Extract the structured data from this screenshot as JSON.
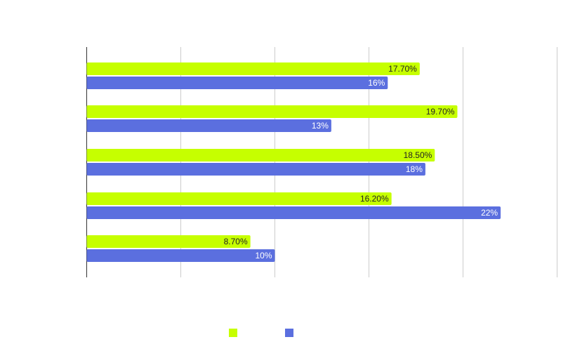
{
  "chart_data": {
    "type": "bar",
    "orientation": "horizontal",
    "title": "",
    "xlabel": "",
    "ylabel": "",
    "xlim": [
      0,
      25
    ],
    "gridlines_x": [
      0,
      5,
      10,
      15,
      20,
      25
    ],
    "categories": [
      "",
      "",
      "",
      "",
      ""
    ],
    "series": [
      {
        "name": "",
        "color": "#c6ff00",
        "values": [
          17.7,
          19.7,
          18.5,
          16.2,
          8.7
        ],
        "labels": [
          "17.70%",
          "19.70%",
          "18.50%",
          "16.20%",
          "8.70%"
        ],
        "label_color": "#222222"
      },
      {
        "name": "",
        "color": "#5b6fdf",
        "values": [
          16,
          13,
          18,
          22,
          10
        ],
        "labels": [
          "16%",
          "13%",
          "18%",
          "22%",
          "10%"
        ],
        "label_color": "#ffffff"
      }
    ],
    "legend": "bottom-center",
    "grid": true
  }
}
